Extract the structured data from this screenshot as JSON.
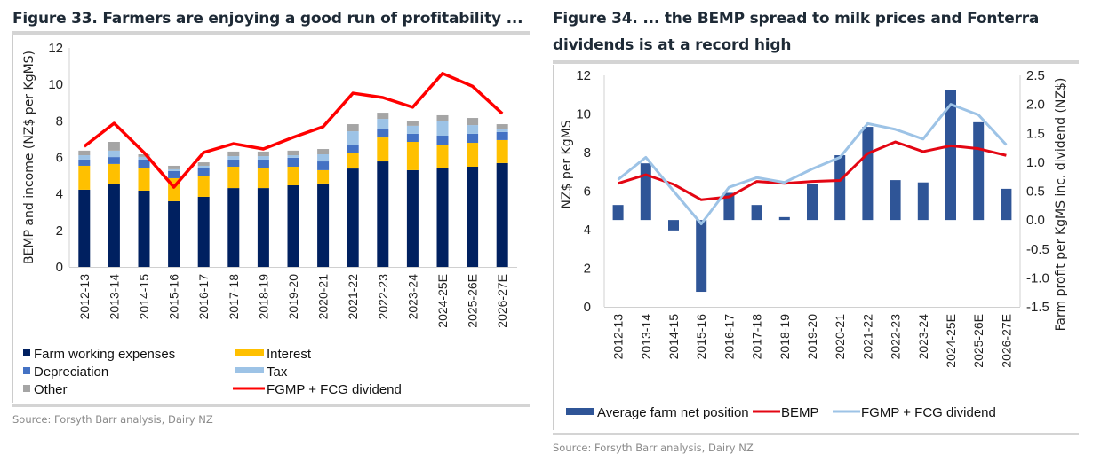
{
  "figure33": {
    "title": "Figure 33. Farmers are enjoying a good run of profitability ...",
    "source": "Source: Forsyth Barr analysis, Dairy NZ"
  },
  "figure34": {
    "title_line1": "Figure 34. ... the BEMP spread to milk prices and Fonterra",
    "title_line2": "dividends is at a record high",
    "source": "Source: Forsyth Barr analysis, Dairy NZ"
  },
  "colors": {
    "farm_working_expenses": "#002060",
    "interest": "#FFC000",
    "depreciation": "#4472C4",
    "tax": "#9DC3E6",
    "other": "#A5A5A5",
    "fgmp_left": "#FF0000",
    "net_position": "#2F5597",
    "bemp": "#E30613",
    "fgmp_right": "#9DC3E6"
  },
  "chart_data": [
    {
      "type": "bar",
      "stacked": true,
      "title": "Figure 33. Farmers are enjoying a good run of profitability ...",
      "xlabel": "",
      "ylabel": "BEMP and income (NZ$ per KgMS)",
      "ylim": [
        0,
        12
      ],
      "yticks": [
        "0",
        "2",
        "4",
        "6",
        "8",
        "10",
        "12"
      ],
      "grid": false,
      "legend_position": "bottom",
      "categories": [
        "2012-13",
        "2013-14",
        "2014-15",
        "2015-16",
        "2016-17",
        "2017-18",
        "2018-19",
        "2019-20",
        "2020-21",
        "2021-22",
        "2022-23",
        "2023-24",
        "2024-25E",
        "2025-26E",
        "2026-27E"
      ],
      "series": [
        {
          "name": "Farm working expenses",
          "kind": "bar",
          "values": [
            4.23,
            4.52,
            4.18,
            3.6,
            3.84,
            4.32,
            4.32,
            4.47,
            4.57,
            5.39,
            5.78,
            5.3,
            5.44,
            5.49,
            5.69
          ]
        },
        {
          "name": "Interest",
          "kind": "bar",
          "values": [
            1.31,
            1.12,
            1.26,
            1.26,
            1.16,
            1.17,
            1.12,
            1.02,
            0.73,
            0.83,
            1.31,
            1.55,
            1.26,
            1.31,
            1.26
          ]
        },
        {
          "name": "Depreciation",
          "kind": "bar",
          "values": [
            0.34,
            0.38,
            0.44,
            0.39,
            0.44,
            0.39,
            0.44,
            0.49,
            0.48,
            0.48,
            0.44,
            0.44,
            0.49,
            0.49,
            0.44
          ]
        },
        {
          "name": "Tax",
          "kind": "bar",
          "values": [
            0.24,
            0.35,
            0.15,
            0.1,
            0.1,
            0.19,
            0.19,
            0.14,
            0.39,
            0.73,
            0.58,
            0.44,
            0.78,
            0.48,
            0.14
          ]
        },
        {
          "name": "Other",
          "kind": "bar",
          "values": [
            0.25,
            0.48,
            0.14,
            0.19,
            0.19,
            0.25,
            0.25,
            0.25,
            0.29,
            0.39,
            0.34,
            0.24,
            0.34,
            0.39,
            0.29
          ]
        },
        {
          "name": "FGMP + FCG dividend",
          "kind": "line",
          "values": [
            6.6,
            7.87,
            6.27,
            4.37,
            6.27,
            6.75,
            6.46,
            7.1,
            7.68,
            9.52,
            9.28,
            8.75,
            10.6,
            9.9,
            8.4
          ]
        }
      ],
      "legend": [
        {
          "label": "Farm working expenses",
          "swatch": "square"
        },
        {
          "label": "Interest",
          "swatch": "bar"
        },
        {
          "label": "Depreciation",
          "swatch": "square"
        },
        {
          "label": "Tax",
          "swatch": "bar"
        },
        {
          "label": "Other",
          "swatch": "square"
        },
        {
          "label": "FGMP + FCG dividend",
          "swatch": "line"
        }
      ]
    },
    {
      "type": "bar",
      "title": "Figure 34. ... the BEMP spread to milk prices and Fonterra dividends is at a record high",
      "xlabel": "",
      "ylabel": "NZ$ per KgMS",
      "ylabel_right": "Farm profit per KgMS inc. dividend (NZ$)",
      "ylim": [
        0,
        12
      ],
      "ylim_right": [
        -1.5,
        2.5
      ],
      "yticks": [
        "0",
        "2",
        "4",
        "6",
        "8",
        "10",
        "12"
      ],
      "yticks_right": [
        "-1.5",
        "-1.0",
        "-0.5",
        "0.0",
        "0.5",
        "1.0",
        "1.5",
        "2.0",
        "2.5"
      ],
      "grid": false,
      "legend_position": "bottom",
      "categories": [
        "2012-13",
        "2013-14",
        "2014-15",
        "2015-16",
        "2016-17",
        "2017-18",
        "2018-19",
        "2019-20",
        "2020-21",
        "2021-22",
        "2022-23",
        "2023-24",
        "2024-25E",
        "2025-26E",
        "2026-27E"
      ],
      "series": [
        {
          "name": "Average farm net position",
          "kind": "bar",
          "axis": "right",
          "values": [
            0.26,
            0.98,
            -0.18,
            -1.24,
            0.47,
            0.26,
            0.05,
            0.63,
            1.12,
            1.61,
            0.69,
            0.65,
            2.24,
            1.69,
            0.54
          ]
        },
        {
          "name": "BEMP",
          "kind": "line",
          "axis": "left",
          "values": [
            6.4,
            6.85,
            6.35,
            5.55,
            5.7,
            6.5,
            6.4,
            6.5,
            6.55,
            7.95,
            8.55,
            8.05,
            8.35,
            8.2,
            7.85
          ]
        },
        {
          "name": "FGMP + FCG dividend",
          "kind": "line",
          "axis": "left",
          "values": [
            6.6,
            7.75,
            6.0,
            4.3,
            6.2,
            6.7,
            6.45,
            7.15,
            7.75,
            9.5,
            9.2,
            8.7,
            10.5,
            9.95,
            8.4
          ]
        }
      ],
      "legend": [
        {
          "label": "Average farm net position",
          "swatch": "bar"
        },
        {
          "label": "BEMP",
          "swatch": "line"
        },
        {
          "label": "FGMP + FCG dividend",
          "swatch": "line"
        }
      ]
    }
  ]
}
